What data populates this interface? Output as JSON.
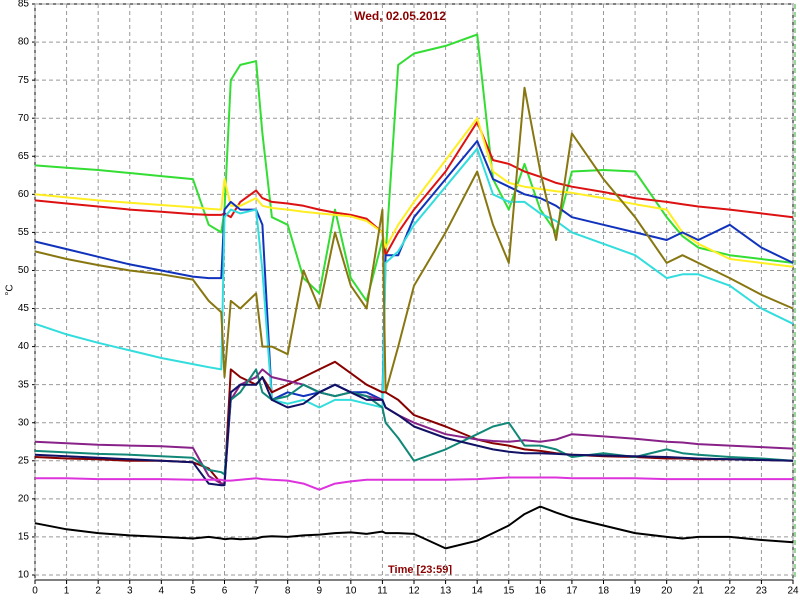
{
  "chart_data": {
    "type": "line",
    "title": "Wed, 02.05.2012",
    "xlabel": "Time [23:59]",
    "ylabel": "°C",
    "x": [
      0,
      1,
      2,
      3,
      4,
      5,
      5.5,
      5.9,
      6,
      6.2,
      6.5,
      7,
      7.2,
      7.5,
      8,
      8.5,
      9,
      9.5,
      10,
      10.5,
      11,
      11.1,
      11.5,
      12,
      13,
      14,
      14.5,
      15,
      15.5,
      16,
      16.5,
      17,
      18,
      19,
      20,
      20.5,
      21,
      22,
      23,
      24
    ],
    "xlim": [
      0,
      24
    ],
    "xticks": [
      0,
      1,
      2,
      3,
      4,
      5,
      6,
      7,
      8,
      9,
      10,
      11,
      12,
      13,
      14,
      15,
      16,
      17,
      18,
      19,
      20,
      21,
      22,
      23,
      24
    ],
    "ylim": [
      10,
      85
    ],
    "yticks": [
      10,
      15,
      20,
      25,
      30,
      35,
      40,
      45,
      50,
      55,
      60,
      65,
      70,
      75,
      80,
      85
    ],
    "grid": true,
    "series": [
      {
        "color": "#33dd33",
        "values": [
          63.8,
          63.5,
          63.2,
          62.8,
          62.4,
          62,
          56,
          55,
          58,
          75,
          77,
          77.5,
          68,
          57,
          56,
          49,
          47,
          58,
          49,
          46,
          54,
          52,
          77,
          78.5,
          79.5,
          81,
          62,
          58,
          64,
          58,
          55,
          63,
          63.2,
          63,
          57,
          54.5,
          53,
          52,
          51.5,
          51
        ]
      },
      {
        "color": "#dd1111",
        "values": [
          59.2,
          58.8,
          58.4,
          58,
          57.7,
          57.4,
          57.3,
          57.3,
          57.5,
          57,
          59,
          60.5,
          59.5,
          59,
          58.8,
          58.5,
          58,
          57.6,
          57.3,
          56.8,
          55,
          52,
          55,
          58,
          63,
          69.5,
          64.5,
          64,
          63,
          62.3,
          61.5,
          61,
          60.3,
          59.5,
          59,
          58.7,
          58.4,
          58,
          57.5,
          57
        ]
      },
      {
        "color": "#ffee22",
        "values": [
          60,
          59.6,
          59.2,
          58.9,
          58.6,
          58.3,
          58.1,
          58,
          62,
          58.5,
          58.5,
          59.5,
          58.5,
          58.2,
          58,
          57.7,
          57.5,
          57.3,
          57.1,
          56.5,
          55,
          53,
          56,
          59,
          64.5,
          70,
          63,
          61.5,
          61,
          60.7,
          60.4,
          60.2,
          59.5,
          58.7,
          58,
          55,
          53.5,
          51.5,
          51,
          50.5
        ]
      },
      {
        "color": "#1133bb",
        "values": [
          53.8,
          52.8,
          51.8,
          50.8,
          50,
          49.2,
          49,
          49,
          58,
          59,
          58,
          58,
          56,
          33,
          34,
          33.5,
          34,
          35,
          34,
          34,
          33,
          52,
          52,
          57,
          62,
          67,
          62,
          61,
          60,
          59.5,
          58.5,
          57,
          56,
          55,
          54,
          55,
          54,
          56,
          53,
          51
        ]
      },
      {
        "color": "#33dddd",
        "values": [
          43,
          41.6,
          40.5,
          39.5,
          38.5,
          37.7,
          37.3,
          37,
          57,
          58,
          57.5,
          58,
          50,
          33,
          32.5,
          33,
          32,
          33,
          33,
          32.5,
          32,
          51,
          52.5,
          56,
          61,
          66,
          60,
          59,
          59,
          57.5,
          56.5,
          55,
          53.5,
          52,
          49,
          49.5,
          49.5,
          48,
          45,
          43
        ]
      },
      {
        "color": "#887711",
        "values": [
          52.5,
          51.5,
          50.7,
          50,
          49.5,
          48.8,
          46,
          44.5,
          36,
          46,
          45,
          47,
          40,
          40,
          39,
          50,
          45,
          55,
          48,
          45,
          58,
          34,
          40,
          48,
          55,
          63,
          56,
          51,
          74,
          63,
          54,
          68,
          62,
          57,
          51,
          52,
          51,
          49,
          46.8,
          45
        ]
      },
      {
        "color": "#880000",
        "values": [
          25.5,
          25.3,
          25.2,
          25,
          25,
          24.8,
          24,
          22,
          22,
          37,
          36,
          35,
          36,
          34,
          35,
          36,
          37,
          38,
          36.5,
          35,
          34,
          34,
          33,
          31,
          29.5,
          27.8,
          27.3,
          27,
          26.5,
          26.3,
          26,
          25.8,
          25.6,
          25.5,
          25.3,
          25.3,
          25.2,
          25.2,
          25.1,
          25
        ]
      },
      {
        "color": "#882288",
        "values": [
          27.5,
          27.3,
          27.1,
          27,
          26.9,
          26.7,
          23,
          22,
          22,
          33,
          35,
          36,
          37,
          36,
          35.5,
          35,
          34,
          33.5,
          34,
          33.5,
          33,
          32,
          31,
          30,
          28.5,
          27.8,
          27.6,
          27.5,
          27.7,
          27.5,
          27.8,
          28.5,
          28.2,
          27.9,
          27.5,
          27.4,
          27.2,
          27,
          26.8,
          26.6
        ]
      },
      {
        "color": "#118877",
        "values": [
          26.3,
          26.1,
          25.9,
          25.8,
          25.6,
          25.4,
          23.8,
          23.5,
          23.2,
          33,
          34,
          37,
          34,
          33,
          33.5,
          35,
          34,
          33.5,
          34,
          33.5,
          32,
          30,
          28,
          25,
          26.5,
          28.5,
          29.5,
          30,
          27,
          27,
          26.5,
          25.5,
          26,
          25.5,
          26.5,
          26,
          25.8,
          25.5,
          25.3,
          25
        ]
      },
      {
        "color": "#111166",
        "values": [
          25.8,
          25.6,
          25.4,
          25.2,
          25,
          24.8,
          22,
          21.8,
          21.8,
          34,
          35,
          35,
          36,
          33,
          32,
          32.5,
          34,
          35,
          34,
          33,
          33,
          32,
          31,
          29.5,
          28,
          27,
          26.5,
          26.2,
          26,
          26,
          25.9,
          25.8,
          25.7,
          25.6,
          25.5,
          25.4,
          25.3,
          25.2,
          25.1,
          25
        ]
      },
      {
        "color": "#dd33dd",
        "values": [
          22.7,
          22.7,
          22.6,
          22.6,
          22.6,
          22.5,
          22.5,
          22.5,
          22.4,
          22.4,
          22.5,
          22.7,
          22.6,
          22.5,
          22.4,
          22,
          21.2,
          22,
          22.3,
          22.5,
          22.5,
          22.5,
          22.5,
          22.5,
          22.5,
          22.6,
          22.7,
          22.8,
          22.8,
          22.8,
          22.8,
          22.7,
          22.7,
          22.7,
          22.6,
          22.6,
          22.6,
          22.6,
          22.6,
          22.6
        ]
      },
      {
        "color": "#000000",
        "values": [
          16.8,
          16,
          15.5,
          15.2,
          15,
          14.8,
          15,
          14.8,
          14.7,
          14.8,
          14.7,
          14.8,
          15,
          15.1,
          15,
          15.2,
          15.3,
          15.5,
          15.6,
          15.4,
          15.7,
          15.5,
          15.5,
          15.4,
          13.5,
          14.5,
          15.5,
          16.5,
          18,
          19,
          18.2,
          17.5,
          16.5,
          15.5,
          15,
          14.8,
          15,
          15,
          14.6,
          14.3
        ]
      }
    ]
  }
}
